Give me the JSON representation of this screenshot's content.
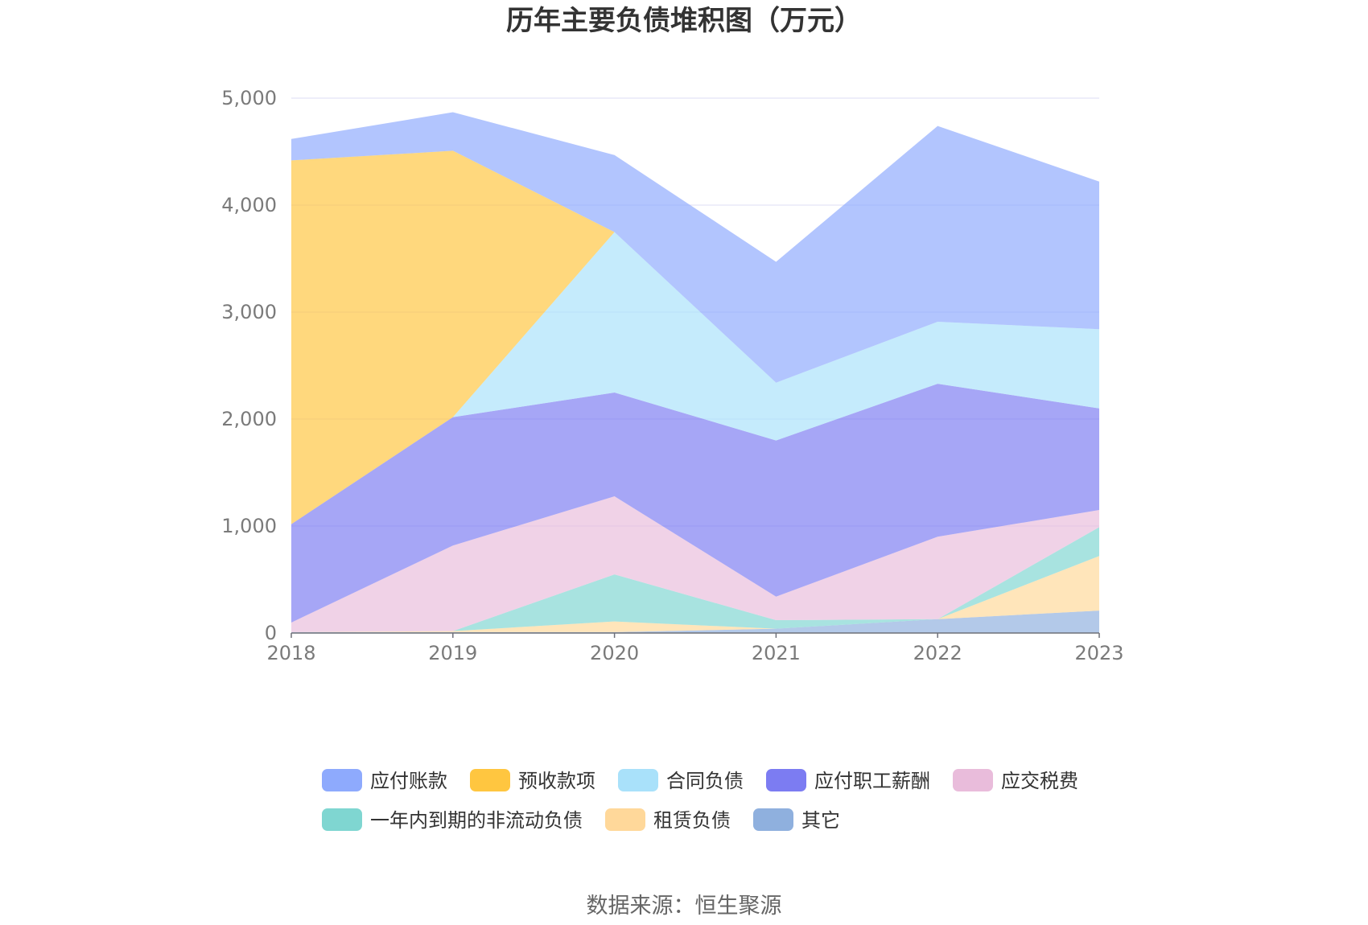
{
  "chart_data": {
    "type": "area",
    "stacked": true,
    "title": "历年主要负债堆积图（万元）",
    "source": "数据来源：恒生聚源",
    "categories": [
      "2018",
      "2019",
      "2020",
      "2021",
      "2022",
      "2023"
    ],
    "ylim": [
      0,
      5000
    ],
    "yticks": [
      0,
      1000,
      2000,
      3000,
      4000,
      5000
    ],
    "ytick_labels": [
      "0",
      "1,000",
      "2,000",
      "3,000",
      "4,000",
      "5,000"
    ],
    "grid": true,
    "legend_position": "bottom",
    "series": [
      {
        "name": "其它",
        "color": "#8fb0de",
        "values": [
          8,
          8,
          8,
          40,
          130,
          210
        ]
      },
      {
        "name": "租赁负债",
        "color": "#ffd89a",
        "values": [
          0,
          10,
          100,
          0,
          0,
          510
        ]
      },
      {
        "name": "一年内到期的非流动负债",
        "color": "#7fd6d1",
        "values": [
          0,
          0,
          440,
          80,
          0,
          270
        ]
      },
      {
        "name": "应交税费",
        "color": "#e9bcdb",
        "values": [
          90,
          800,
          730,
          220,
          770,
          160
        ]
      },
      {
        "name": "应付职工薪酬",
        "color": "#7c7cf2",
        "values": [
          920,
          1200,
          970,
          1460,
          1430,
          950
        ]
      },
      {
        "name": "合同负债",
        "color": "#a9e1fa",
        "values": [
          0,
          0,
          1500,
          540,
          580,
          740
        ]
      },
      {
        "name": "预收款项",
        "color": "#ffc640",
        "values": [
          3400,
          2490,
          0,
          0,
          0,
          0
        ]
      },
      {
        "name": "应付账款",
        "color": "#8eaafd",
        "values": [
          200,
          360,
          720,
          1130,
          1830,
          1380
        ]
      }
    ],
    "legend_order": [
      "应付账款",
      "预收款项",
      "合同负债",
      "应付职工薪酬",
      "应交税费",
      "一年内到期的非流动负债",
      "租赁负债",
      "其它"
    ]
  }
}
